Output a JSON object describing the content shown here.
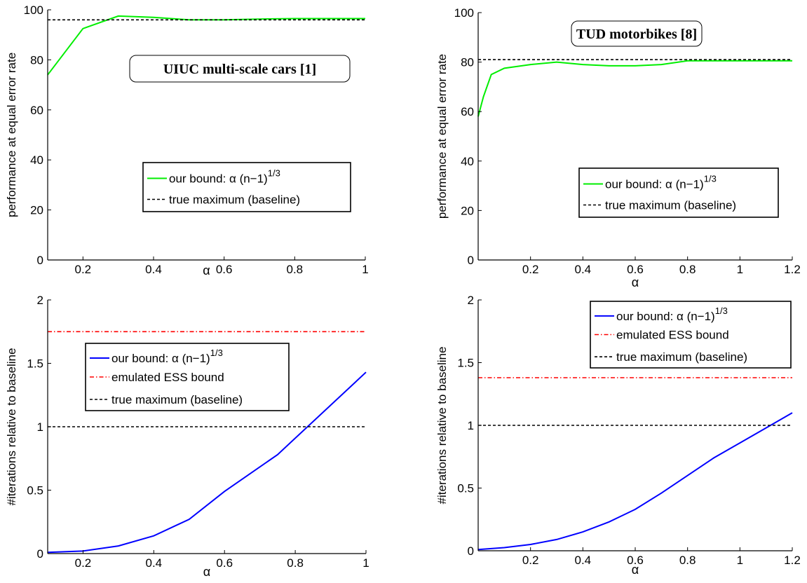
{
  "chart_data": [
    {
      "type": "line",
      "title": "UIUC multi-scale cars [1]",
      "xlabel": "α",
      "ylabel": "performance at equal error rate",
      "xlim": [
        0.1,
        1
      ],
      "ylim": [
        0,
        100
      ],
      "xticks": [
        0.2,
        0.4,
        0.6,
        0.8,
        1
      ],
      "xtick_labels": [
        "0.2",
        "0.4",
        "0.6",
        "0.8",
        "1"
      ],
      "yticks": [
        0,
        20,
        40,
        60,
        80,
        100
      ],
      "ytick_labels": [
        "0",
        "20",
        "40",
        "60",
        "80",
        "100"
      ],
      "grid": false,
      "legend_position": "lower-right",
      "series": [
        {
          "name": "our bound: α (n−1)",
          "name_superscript": "1/3",
          "color": "#00ee00",
          "dash": "solid",
          "x": [
            0.1,
            0.2,
            0.3,
            0.4,
            0.5,
            0.6,
            0.7,
            0.8,
            0.9,
            1.0
          ],
          "y": [
            74,
            92.5,
            97.5,
            97,
            96,
            96,
            96.3,
            96.5,
            96.5,
            96.5
          ]
        },
        {
          "name": "true maximum (baseline)",
          "color": "#000000",
          "dash": "dashed",
          "x": [
            0.1,
            1.0
          ],
          "y": [
            96,
            96
          ]
        }
      ]
    },
    {
      "type": "line",
      "title": "TUD motorbikes [8]",
      "xlabel": "α",
      "ylabel": "performance at equal error rate",
      "xlim": [
        0,
        1.2
      ],
      "ylim": [
        0,
        100
      ],
      "xticks": [
        0.2,
        0.4,
        0.6,
        0.8,
        1,
        1.2
      ],
      "xtick_labels": [
        "0.2",
        "0.4",
        "0.6",
        "0.8",
        "1",
        "1.2"
      ],
      "yticks": [
        0,
        20,
        40,
        60,
        80,
        100
      ],
      "ytick_labels": [
        "0",
        "20",
        "40",
        "60",
        "80",
        "100"
      ],
      "grid": false,
      "legend_position": "lower-right",
      "series": [
        {
          "name": "our bound: α (n−1)",
          "name_superscript": "1/3",
          "color": "#00ee00",
          "dash": "solid",
          "x": [
            0.0,
            0.02,
            0.05,
            0.1,
            0.2,
            0.3,
            0.4,
            0.5,
            0.6,
            0.7,
            0.8,
            0.9,
            1.0,
            1.1,
            1.2
          ],
          "y": [
            58,
            66,
            75,
            77.5,
            79,
            80,
            79,
            78.5,
            78.5,
            79,
            80.5,
            80.5,
            80.5,
            80.5,
            80.5
          ]
        },
        {
          "name": "true maximum (baseline)",
          "color": "#000000",
          "dash": "dashed",
          "x": [
            0.0,
            1.2
          ],
          "y": [
            81,
            81
          ]
        }
      ]
    },
    {
      "type": "line",
      "title": "",
      "xlabel": "α",
      "ylabel": "#iterations relative to baseline",
      "xlim": [
        0.1,
        1
      ],
      "ylim": [
        0,
        2
      ],
      "xticks": [
        0.2,
        0.4,
        0.6,
        0.8,
        1
      ],
      "xtick_labels": [
        "0.2",
        "0.4",
        "0.6",
        "0.8",
        "1"
      ],
      "yticks": [
        0,
        0.5,
        1,
        1.5,
        2
      ],
      "ytick_labels": [
        "0",
        "0.5",
        "1",
        "1.5",
        "2"
      ],
      "grid": false,
      "legend_position": "top-left",
      "series": [
        {
          "name": "our bound: α (n−1)",
          "name_superscript": "1/3",
          "color": "#0000ff",
          "dash": "solid",
          "x": [
            0.1,
            0.2,
            0.3,
            0.4,
            0.5,
            0.6,
            0.75,
            1.0
          ],
          "y": [
            0.01,
            0.02,
            0.06,
            0.14,
            0.27,
            0.49,
            0.78,
            1.43
          ]
        },
        {
          "name": "emulated ESS bound",
          "color": "#ff0000",
          "dash": "dashdot",
          "x": [
            0.1,
            1.0
          ],
          "y": [
            1.75,
            1.75
          ]
        },
        {
          "name": "true maximum (baseline)",
          "color": "#000000",
          "dash": "dashed",
          "x": [
            0.1,
            1.0
          ],
          "y": [
            1,
            1
          ]
        }
      ]
    },
    {
      "type": "line",
      "title": "",
      "xlabel": "α",
      "ylabel": "#iterations relative to baseline",
      "xlim": [
        0,
        1.2
      ],
      "ylim": [
        0,
        2
      ],
      "xticks": [
        0.2,
        0.4,
        0.6,
        0.8,
        1,
        1.2
      ],
      "xtick_labels": [
        "0.2",
        "0.4",
        "0.6",
        "0.8",
        "1",
        "1.2"
      ],
      "yticks": [
        0,
        0.5,
        1,
        1.5,
        2
      ],
      "ytick_labels": [
        "0",
        "0.5",
        "1",
        "1.5",
        "2"
      ],
      "grid": false,
      "legend_position": "top-right",
      "series": [
        {
          "name": "our bound: α (n−1)",
          "name_superscript": "1/3",
          "color": "#0000ff",
          "dash": "solid",
          "x": [
            0.0,
            0.1,
            0.2,
            0.3,
            0.4,
            0.5,
            0.6,
            0.7,
            0.8,
            0.9,
            1.0,
            1.1,
            1.2
          ],
          "y": [
            0.01,
            0.025,
            0.05,
            0.09,
            0.15,
            0.23,
            0.33,
            0.46,
            0.6,
            0.74,
            0.86,
            0.98,
            1.1
          ]
        },
        {
          "name": "emulated ESS bound",
          "color": "#ff0000",
          "dash": "dashdot",
          "x": [
            0.0,
            1.2
          ],
          "y": [
            1.38,
            1.38
          ]
        },
        {
          "name": "true maximum (baseline)",
          "color": "#000000",
          "dash": "dashed",
          "x": [
            0.0,
            1.2
          ],
          "y": [
            1,
            1
          ]
        }
      ]
    }
  ]
}
